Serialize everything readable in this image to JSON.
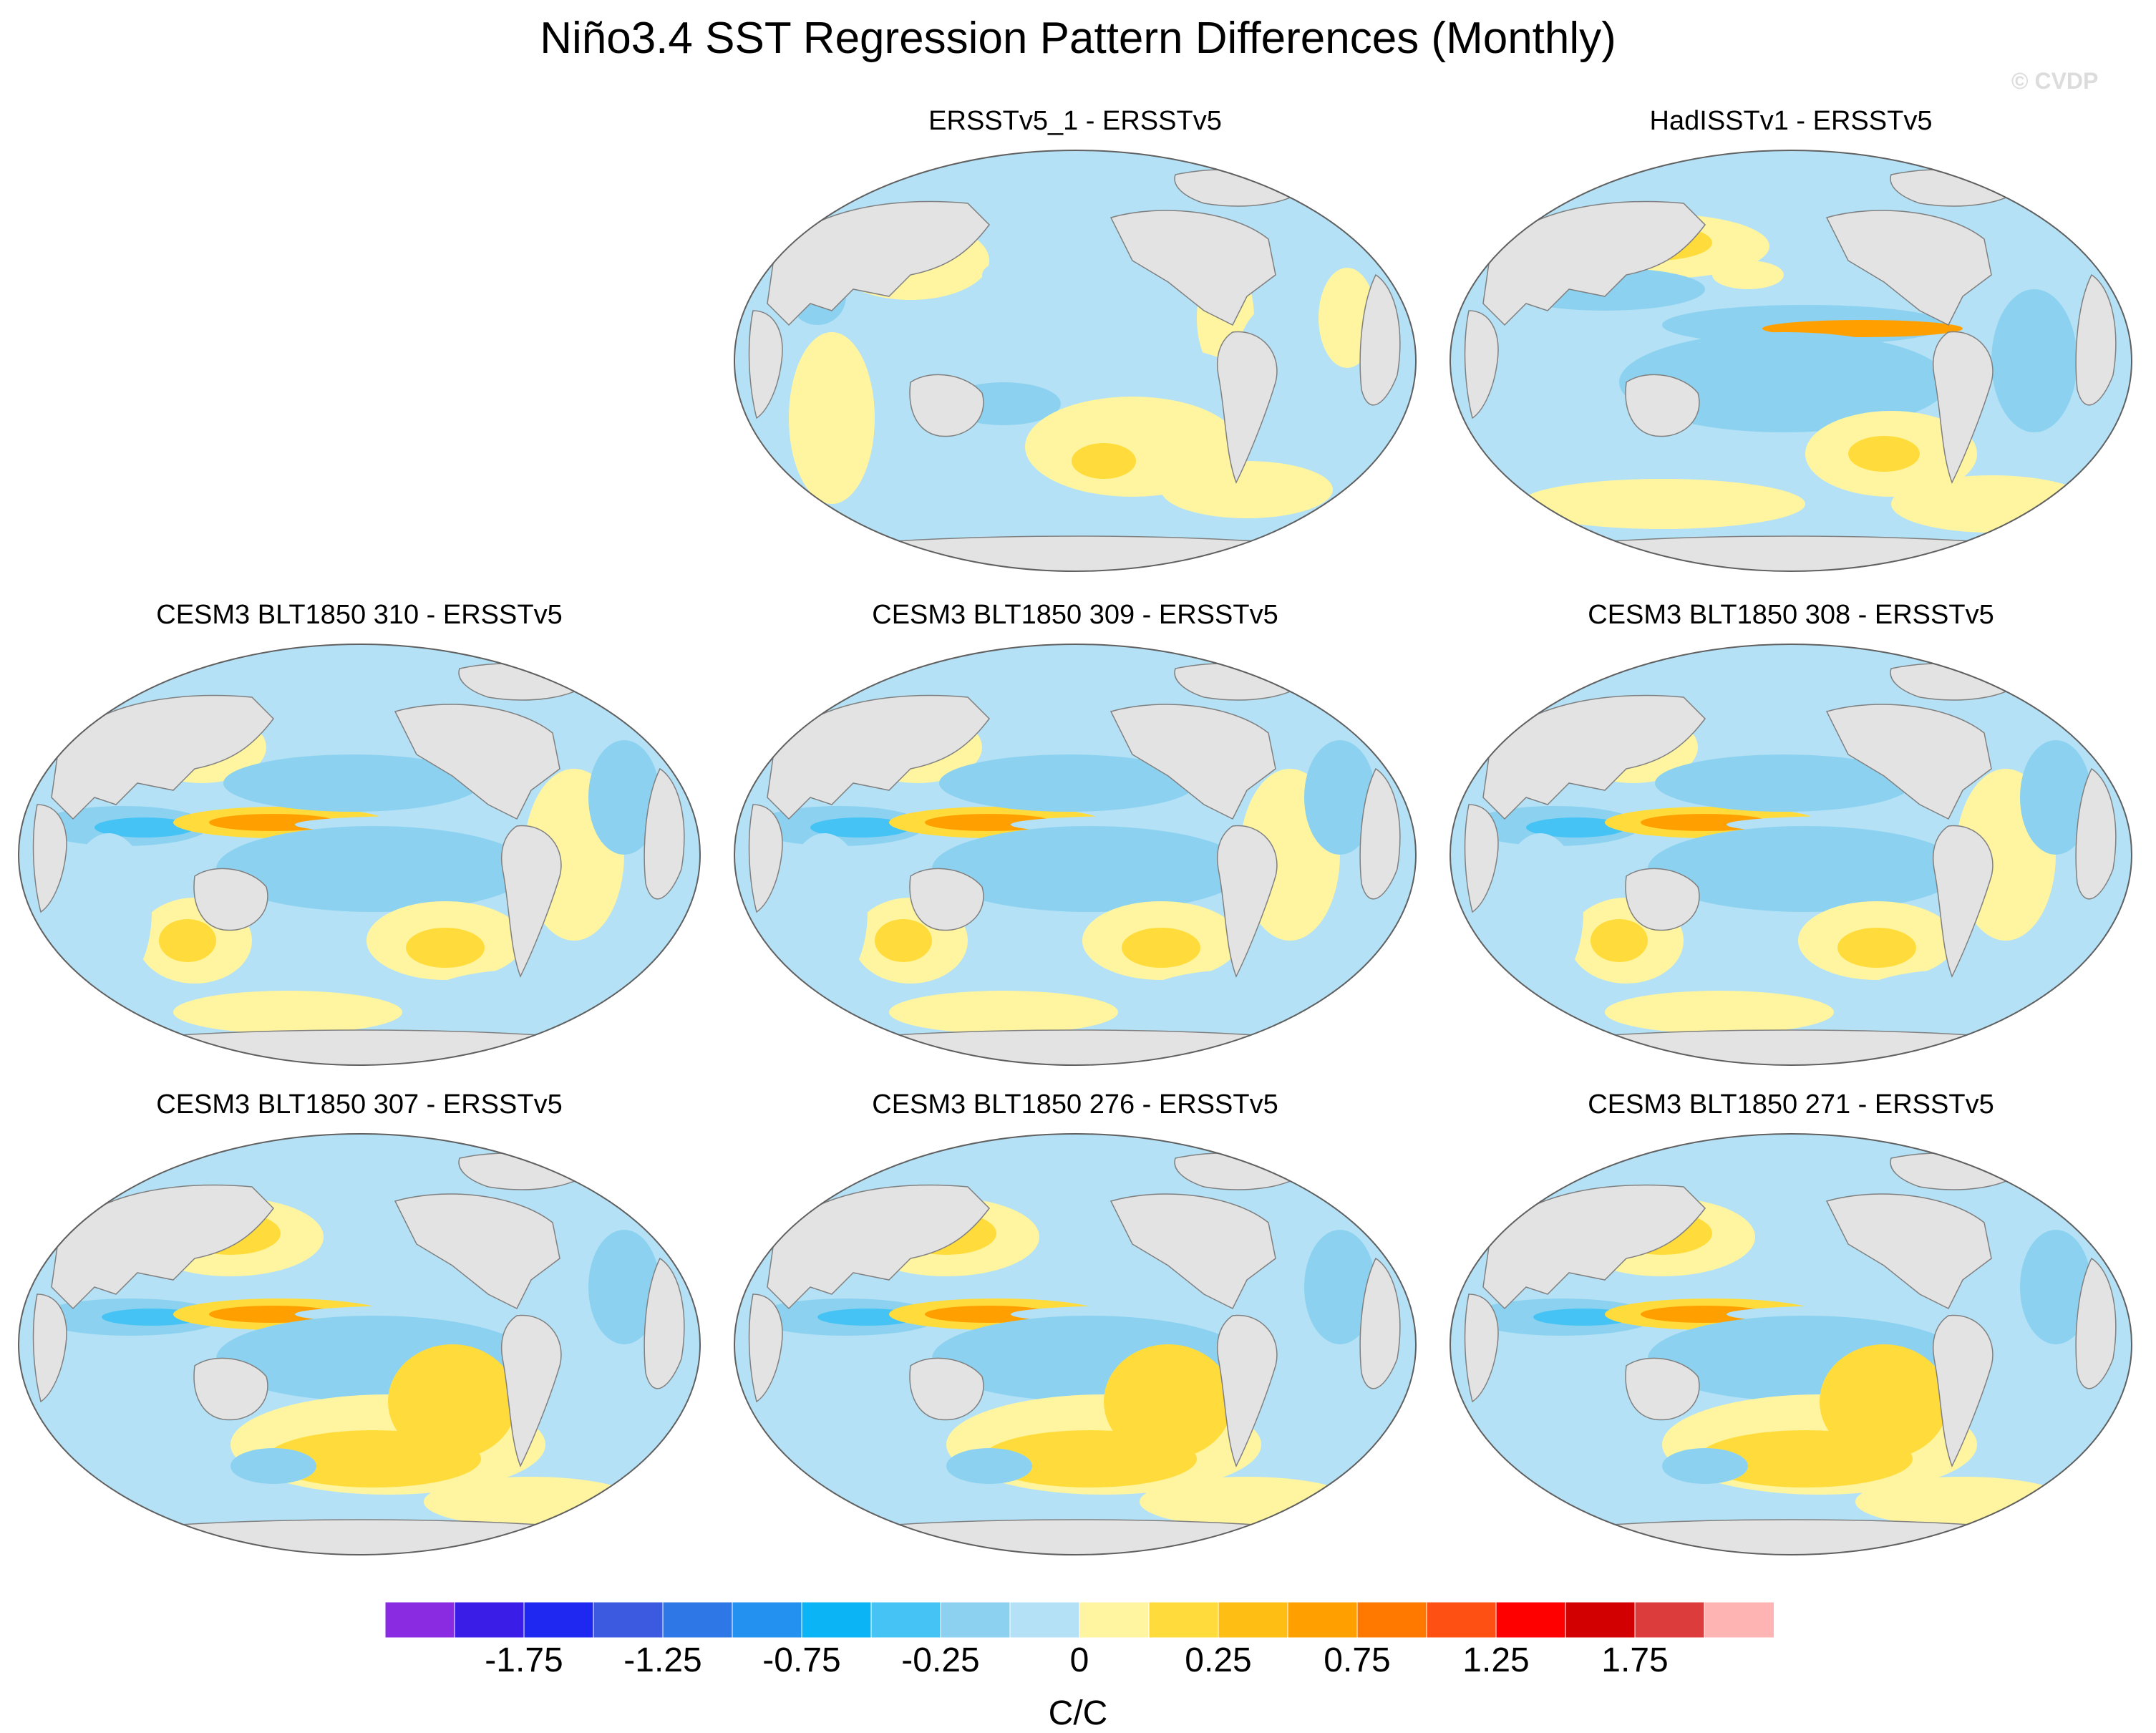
{
  "title": "Niño3.4 SST Regression Pattern Differences (Monthly)",
  "watermark": "© CVDP",
  "units": "C/C",
  "panels": [
    {
      "title": "ERSSTv5_1 - ERSSTv5",
      "variant": 1
    },
    {
      "title": "HadISSTv1 - ERSSTv5",
      "variant": 2
    },
    {
      "title": "CESM3 BLT1850 310 - ERSSTv5",
      "variant": 3
    },
    {
      "title": "CESM3 BLT1850 309 - ERSSTv5",
      "variant": 3
    },
    {
      "title": "CESM3 BLT1850 308 - ERSSTv5",
      "variant": 3
    },
    {
      "title": "CESM3 BLT1850 307 - ERSSTv5",
      "variant": 4
    },
    {
      "title": "CESM3 BLT1850 276 - ERSSTv5",
      "variant": 4
    },
    {
      "title": "CESM3 BLT1850 271 - ERSSTv5",
      "variant": 4
    }
  ],
  "colorbar": {
    "colors": [
      "#8a2be2",
      "#3a1ee8",
      "#1e28f0",
      "#3c5ae0",
      "#2d78e6",
      "#2391f0",
      "#0ab4f5",
      "#46c3f5",
      "#8cd2f0",
      "#b4e1f5",
      "#fff5a0",
      "#ffdc3c",
      "#ffbe14",
      "#ffa000",
      "#ff7800",
      "#ff5014",
      "#ff0000",
      "#d20000",
      "#dc3c3c",
      "#ffb4b4"
    ],
    "labels": [
      "-1.75",
      "-1.25",
      "-0.75",
      "-0.25",
      "0",
      "0.25",
      "0.75",
      "1.25",
      "1.75"
    ],
    "label_boundaries": [
      2,
      4,
      6,
      8,
      10,
      12,
      14,
      16,
      18
    ]
  }
}
